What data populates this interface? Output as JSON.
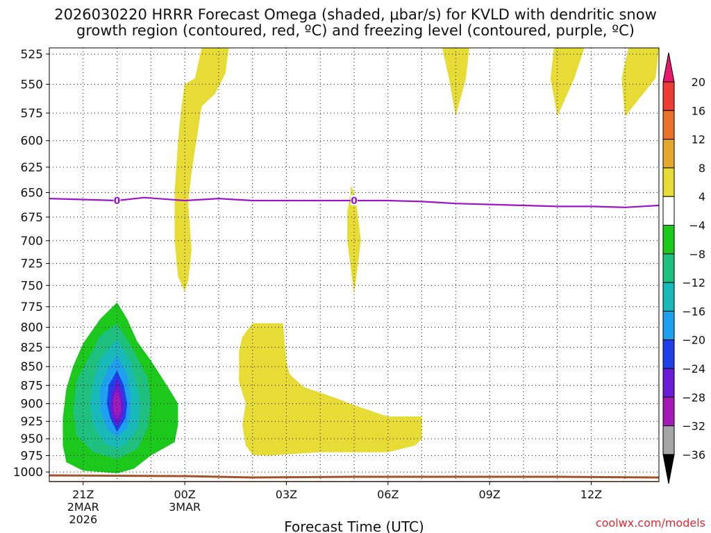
{
  "chart_data": {
    "type": "heatmap",
    "title_line1": "2026030220 HRRR Forecast Omega (shaded, μbar/s) for KVLD with dendritic snow",
    "title_line2": "growth region (contoured, red, ºC) and freezing level (contoured, purple, ºC)",
    "xlabel": "Forecast Time (UTC)",
    "credit": "coolwx.com/models",
    "x_unit": "hours from 21Z",
    "xlim": [
      -1,
      17
    ],
    "x_ticks": [
      {
        "x": 0,
        "label": "21Z",
        "sub1": "2MAR",
        "sub2": "2026"
      },
      {
        "x": 3,
        "label": "00Z",
        "sub1": "3MAR",
        "sub2": ""
      },
      {
        "x": 6,
        "label": "03Z",
        "sub1": "",
        "sub2": ""
      },
      {
        "x": 9,
        "label": "06Z",
        "sub1": "",
        "sub2": ""
      },
      {
        "x": 12,
        "label": "09Z",
        "sub1": "",
        "sub2": ""
      },
      {
        "x": 15,
        "label": "12Z",
        "sub1": "",
        "sub2": ""
      }
    ],
    "x_grid_hours": [
      0,
      1,
      2,
      3,
      4,
      5,
      6,
      7,
      8,
      9,
      10,
      11,
      12,
      13,
      14,
      15,
      16
    ],
    "y_unit": "hPa (log scale, inverted)",
    "ylim": [
      1015,
      520
    ],
    "y_ticks": [
      525,
      550,
      575,
      600,
      625,
      650,
      675,
      700,
      725,
      750,
      775,
      800,
      825,
      850,
      875,
      900,
      925,
      950,
      975,
      1000
    ],
    "legend": {
      "labels": [
        "20",
        "16",
        "12",
        "8",
        "4",
        "−4",
        "−8",
        "−12",
        "−16",
        "−20",
        "−24",
        "−28",
        "−32",
        "−36"
      ],
      "top_triangle_color": "#e8186e",
      "bottom_triangle_color": "#000000",
      "colors_top_to_bottom": [
        "#ee3b33",
        "#e8722a",
        "#e3a62e",
        "#e6dc35",
        "#ffffff",
        "#1dc81d",
        "#1ebf7f",
        "#19b9b9",
        "#1ea0ee",
        "#1f3fe8",
        "#6a1bd6",
        "#a31ab7",
        "#a5a5a5"
      ]
    },
    "freezing_level": {
      "color": "#9a14c8",
      "contour_label": "0",
      "label_positions_x": [
        1,
        8
      ],
      "points": [
        [
          -1,
          656
        ],
        [
          0,
          657
        ],
        [
          1,
          658
        ],
        [
          1.8,
          655
        ],
        [
          3,
          658
        ],
        [
          4,
          656
        ],
        [
          5,
          658
        ],
        [
          6,
          658
        ],
        [
          7,
          658
        ],
        [
          8,
          658
        ],
        [
          9,
          658
        ],
        [
          10,
          659
        ],
        [
          11,
          661
        ],
        [
          12,
          662
        ],
        [
          13,
          663
        ],
        [
          14,
          664
        ],
        [
          15,
          664
        ],
        [
          16,
          665
        ],
        [
          17,
          663
        ]
      ]
    },
    "terrain": {
      "color": "#a0522d",
      "pressure_hpa": 1015
    },
    "omega_regions": [
      {
        "color": "#e6dc35",
        "value_range": "4 to 8",
        "points": [
          [
            3.5,
            520
          ],
          [
            4.3,
            520
          ],
          [
            4.2,
            541
          ],
          [
            3.9,
            558
          ],
          [
            3.5,
            569
          ],
          [
            3.2,
            630
          ],
          [
            3.1,
            660
          ],
          [
            3.2,
            710
          ],
          [
            3.1,
            745
          ],
          [
            3.0,
            757
          ],
          [
            2.8,
            740
          ],
          [
            2.7,
            700
          ],
          [
            2.7,
            650
          ],
          [
            2.8,
            600
          ],
          [
            2.9,
            570
          ],
          [
            3.0,
            550
          ],
          [
            3.3,
            545
          ]
        ]
      },
      {
        "color": "#e6dc35",
        "value_range": "4 to 8",
        "points": [
          [
            7.9,
            643
          ],
          [
            8.0,
            650
          ],
          [
            8.1,
            670
          ],
          [
            8.2,
            700
          ],
          [
            8.1,
            730
          ],
          [
            8.0,
            760
          ],
          [
            7.9,
            730
          ],
          [
            7.8,
            700
          ],
          [
            7.8,
            670
          ],
          [
            7.9,
            650
          ]
        ]
      },
      {
        "color": "#e6dc35",
        "value_range": "4 to 8",
        "points": [
          [
            10.6,
            520
          ],
          [
            11.4,
            520
          ],
          [
            11.3,
            545
          ],
          [
            11.0,
            578
          ],
          [
            10.8,
            545
          ]
        ]
      },
      {
        "color": "#e6dc35",
        "value_range": "4 to 8",
        "points": [
          [
            13.9,
            520
          ],
          [
            14.8,
            520
          ],
          [
            14.5,
            545
          ],
          [
            14.0,
            578
          ],
          [
            13.8,
            545
          ]
        ]
      },
      {
        "color": "#e6dc35",
        "value_range": "4 to 8",
        "points": [
          [
            16.4,
            520
          ],
          [
            17.0,
            520
          ],
          [
            16.9,
            545
          ],
          [
            16.0,
            578
          ],
          [
            15.9,
            545
          ],
          [
            16.1,
            520
          ]
        ]
      },
      {
        "color": "#e6dc35",
        "value_range": "4 to 8",
        "points": [
          [
            5.0,
            795
          ],
          [
            5.9,
            795
          ],
          [
            6.0,
            843
          ],
          [
            6.1,
            860
          ],
          [
            6.5,
            877
          ],
          [
            7.5,
            893
          ],
          [
            8.0,
            902
          ],
          [
            8.8,
            915
          ],
          [
            9.0,
            918
          ],
          [
            10.0,
            918
          ],
          [
            10.0,
            950
          ],
          [
            9.8,
            960
          ],
          [
            9.0,
            970
          ],
          [
            8.0,
            970
          ],
          [
            7.0,
            970
          ],
          [
            5.5,
            975
          ],
          [
            5.0,
            974
          ],
          [
            4.8,
            960
          ],
          [
            4.7,
            930
          ],
          [
            4.8,
            900
          ],
          [
            4.6,
            870
          ],
          [
            4.6,
            830
          ],
          [
            4.7,
            812
          ]
        ]
      },
      {
        "color": "#1dc81d",
        "value_range": "-8 to -4",
        "points": [
          [
            1.0,
            770
          ],
          [
            1.3,
            790
          ],
          [
            1.6,
            818
          ],
          [
            2.0,
            842
          ],
          [
            2.5,
            877
          ],
          [
            2.8,
            900
          ],
          [
            2.8,
            930
          ],
          [
            2.7,
            955
          ],
          [
            2.0,
            975
          ],
          [
            1.5,
            995
          ],
          [
            1.0,
            1002
          ],
          [
            0.0,
            998
          ],
          [
            -0.5,
            985
          ],
          [
            -0.6,
            960
          ],
          [
            -0.6,
            920
          ],
          [
            -0.5,
            880
          ],
          [
            -0.3,
            850
          ],
          [
            0.0,
            820
          ],
          [
            0.5,
            790
          ]
        ]
      },
      {
        "color": "#1ebf7f",
        "value_range": "-12 to -8",
        "points": [
          [
            1.0,
            795
          ],
          [
            1.5,
            830
          ],
          [
            1.9,
            865
          ],
          [
            2.0,
            900
          ],
          [
            1.9,
            935
          ],
          [
            1.6,
            965
          ],
          [
            1.0,
            980
          ],
          [
            0.3,
            970
          ],
          [
            -0.2,
            945
          ],
          [
            -0.3,
            910
          ],
          [
            -0.2,
            870
          ],
          [
            0.2,
            835
          ],
          [
            0.5,
            810
          ]
        ]
      },
      {
        "color": "#19b9b9",
        "value_range": "-16 to -12",
        "points": [
          [
            1.0,
            815
          ],
          [
            1.4,
            845
          ],
          [
            1.6,
            880
          ],
          [
            1.7,
            905
          ],
          [
            1.6,
            935
          ],
          [
            1.3,
            955
          ],
          [
            1.0,
            965
          ],
          [
            0.6,
            955
          ],
          [
            0.3,
            930
          ],
          [
            0.2,
            900
          ],
          [
            0.3,
            870
          ],
          [
            0.5,
            840
          ]
        ]
      },
      {
        "color": "#1ea0ee",
        "value_range": "-20 to -16",
        "points": [
          [
            1.0,
            835
          ],
          [
            1.3,
            860
          ],
          [
            1.4,
            890
          ],
          [
            1.4,
            915
          ],
          [
            1.3,
            935
          ],
          [
            1.0,
            948
          ],
          [
            0.7,
            935
          ],
          [
            0.5,
            910
          ],
          [
            0.5,
            880
          ],
          [
            0.7,
            855
          ]
        ]
      },
      {
        "color": "#1f3fe8",
        "value_range": "-24 to -20",
        "points": [
          [
            1.0,
            855
          ],
          [
            1.2,
            875
          ],
          [
            1.3,
            900
          ],
          [
            1.25,
            920
          ],
          [
            1.0,
            940
          ],
          [
            0.8,
            920
          ],
          [
            0.7,
            900
          ],
          [
            0.75,
            875
          ]
        ]
      },
      {
        "color": "#6a1bd6",
        "value_range": "-28 to -24",
        "points": [
          [
            1.0,
            865
          ],
          [
            1.15,
            885
          ],
          [
            1.2,
            905
          ],
          [
            1.15,
            920
          ],
          [
            1.0,
            932
          ],
          [
            0.85,
            920
          ],
          [
            0.8,
            905
          ],
          [
            0.85,
            885
          ]
        ]
      },
      {
        "color": "#a31ab7",
        "value_range": "-32 to -28",
        "points": [
          [
            1.0,
            880
          ],
          [
            1.1,
            895
          ],
          [
            1.12,
            910
          ],
          [
            1.0,
            922
          ],
          [
            0.9,
            910
          ],
          [
            0.88,
            895
          ]
        ]
      }
    ]
  }
}
